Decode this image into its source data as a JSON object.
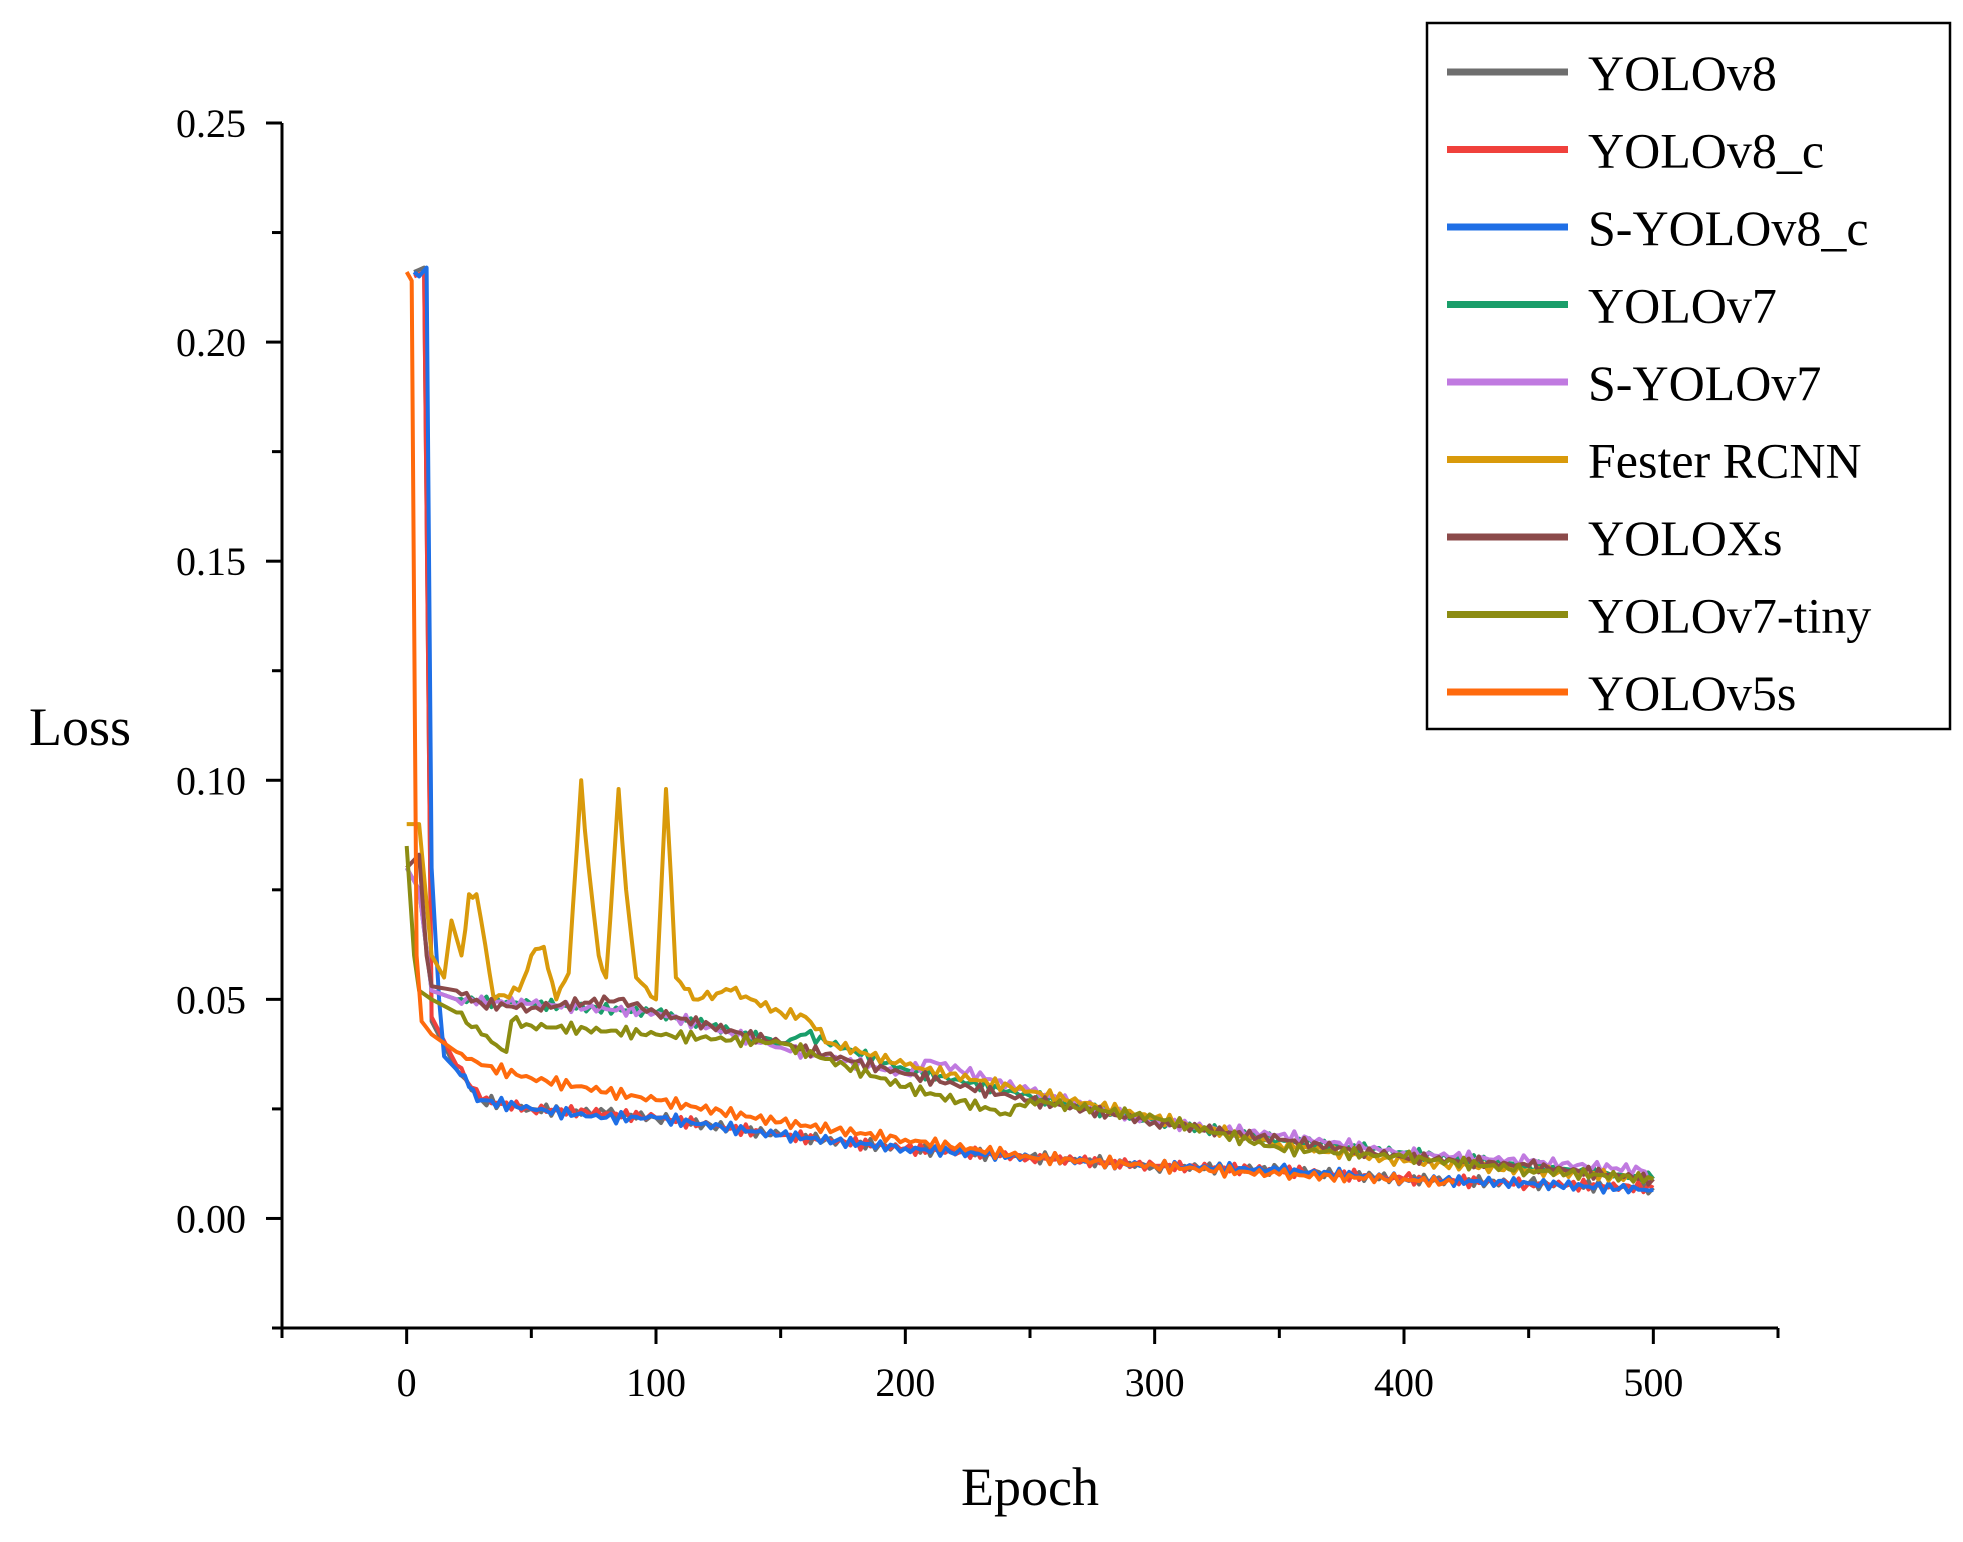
{
  "chart_data": {
    "type": "line",
    "xlabel": "Epoch",
    "ylabel": "Loss",
    "xlim": [
      -50,
      550
    ],
    "ylim": [
      -0.025,
      0.25
    ],
    "xticks": [
      0,
      100,
      200,
      300,
      400,
      500
    ],
    "xtick_labels": [
      "0",
      "100",
      "200",
      "300",
      "400",
      "500"
    ],
    "yticks": [
      0.0,
      0.05,
      0.1,
      0.15,
      0.2,
      0.25
    ],
    "ytick_labels": [
      "0.00",
      "0.05",
      "0.10",
      "0.15",
      "0.20",
      "0.25"
    ],
    "grid": false,
    "legend_position": "top-right",
    "series": [
      {
        "name": "YOLOv8",
        "color": "#6e6e6e",
        "x": [
          3,
          7,
          10,
          20,
          30,
          50,
          80,
          100,
          150,
          200,
          250,
          300,
          350,
          400,
          450,
          500
        ],
        "y": [
          0.216,
          0.217,
          0.045,
          0.034,
          0.027,
          0.025,
          0.024,
          0.023,
          0.019,
          0.016,
          0.014,
          0.012,
          0.011,
          0.009,
          0.008,
          0.007
        ]
      },
      {
        "name": "YOLOv8_c",
        "color": "#f0413c",
        "x": [
          3,
          7,
          10,
          20,
          30,
          50,
          80,
          100,
          150,
          200,
          250,
          300,
          350,
          400,
          450,
          500
        ],
        "y": [
          0.215,
          0.216,
          0.046,
          0.035,
          0.027,
          0.025,
          0.024,
          0.023,
          0.019,
          0.016,
          0.014,
          0.012,
          0.011,
          0.009,
          0.008,
          0.007
        ]
      },
      {
        "name": "S-YOLOv8_c",
        "color": "#1f6fe6",
        "x": [
          3,
          5,
          8,
          10,
          13,
          15,
          20,
          25,
          30,
          50,
          80,
          100,
          150,
          200,
          250,
          300,
          350,
          400,
          450,
          500
        ],
        "y": [
          0.216,
          0.215,
          0.217,
          0.08,
          0.05,
          0.037,
          0.034,
          0.03,
          0.027,
          0.025,
          0.023,
          0.023,
          0.019,
          0.016,
          0.014,
          0.012,
          0.011,
          0.009,
          0.008,
          0.0065
        ]
      },
      {
        "name": "YOLOv7",
        "color": "#1a9e6a",
        "x": [
          0,
          5,
          10,
          20,
          50,
          100,
          150,
          160,
          200,
          250,
          300,
          350,
          400,
          450,
          500
        ],
        "y": [
          0.08,
          0.075,
          0.052,
          0.05,
          0.049,
          0.047,
          0.04,
          0.042,
          0.034,
          0.028,
          0.022,
          0.018,
          0.015,
          0.012,
          0.009
        ]
      },
      {
        "name": "S-YOLOv7",
        "color": "#c07ae0",
        "x": [
          0,
          5,
          10,
          20,
          50,
          100,
          150,
          200,
          210,
          250,
          300,
          350,
          400,
          450,
          495,
          500
        ],
        "y": [
          0.08,
          0.075,
          0.052,
          0.05,
          0.049,
          0.047,
          0.039,
          0.033,
          0.036,
          0.029,
          0.022,
          0.019,
          0.015,
          0.013,
          0.011,
          0.009
        ]
      },
      {
        "name": "Fester RCNN",
        "color": "#d99a0b",
        "x": [
          0,
          5,
          10,
          15,
          18,
          22,
          25,
          28,
          35,
          45,
          50,
          55,
          60,
          65,
          70,
          73,
          77,
          80,
          85,
          88,
          92,
          100,
          104,
          108,
          115,
          130,
          150,
          160,
          170,
          200,
          250,
          300,
          350,
          400,
          450,
          500
        ],
        "y": [
          0.09,
          0.09,
          0.06,
          0.055,
          0.068,
          0.06,
          0.074,
          0.074,
          0.05,
          0.052,
          0.06,
          0.062,
          0.05,
          0.056,
          0.1,
          0.08,
          0.06,
          0.055,
          0.098,
          0.075,
          0.055,
          0.05,
          0.098,
          0.055,
          0.05,
          0.052,
          0.047,
          0.046,
          0.04,
          0.035,
          0.029,
          0.023,
          0.017,
          0.013,
          0.011,
          0.009
        ]
      },
      {
        "name": "YOLOXs",
        "color": "#8b4a4a",
        "x": [
          0,
          5,
          8,
          10,
          20,
          30,
          50,
          85,
          100,
          150,
          200,
          250,
          300,
          350,
          400,
          450,
          500
        ],
        "y": [
          0.08,
          0.083,
          0.06,
          0.053,
          0.052,
          0.049,
          0.048,
          0.05,
          0.047,
          0.04,
          0.033,
          0.027,
          0.022,
          0.018,
          0.014,
          0.012,
          0.009
        ]
      },
      {
        "name": "YOLOv7-tiny",
        "color": "#8c8c12",
        "x": [
          0,
          3,
          5,
          10,
          20,
          30,
          40,
          42,
          50,
          100,
          150,
          200,
          240,
          250,
          300,
          350,
          400,
          450,
          500
        ],
        "y": [
          0.085,
          0.06,
          0.052,
          0.05,
          0.047,
          0.042,
          0.038,
          0.045,
          0.044,
          0.042,
          0.04,
          0.03,
          0.024,
          0.027,
          0.023,
          0.016,
          0.014,
          0.011,
          0.009
        ]
      },
      {
        "name": "YOLOv5s",
        "color": "#ff6a0d",
        "x": [
          0,
          2,
          4,
          6,
          10,
          20,
          30,
          50,
          100,
          150,
          200,
          250,
          300,
          350,
          400,
          420
        ],
        "y": [
          0.216,
          0.214,
          0.06,
          0.045,
          0.042,
          0.038,
          0.035,
          0.032,
          0.027,
          0.022,
          0.018,
          0.014,
          0.012,
          0.01,
          0.009,
          0.008
        ]
      }
    ]
  }
}
